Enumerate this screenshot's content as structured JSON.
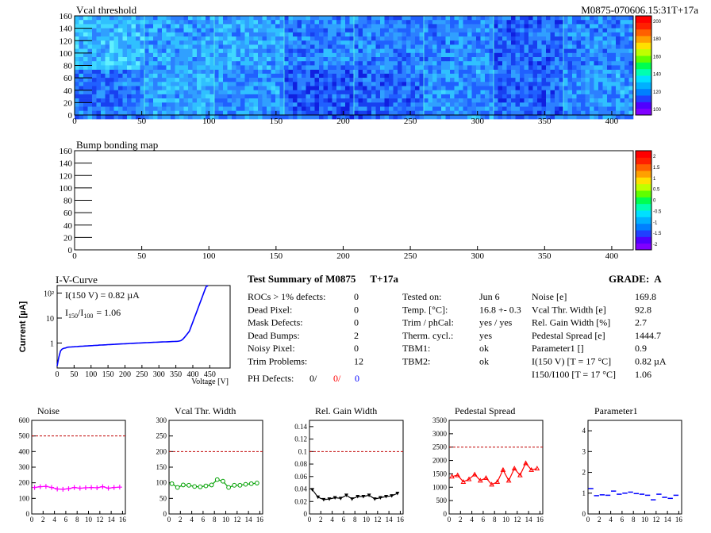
{
  "header": {
    "run_id": "M0875-070606.15:31T+17a"
  },
  "vcal_map": {
    "title": "Vcal threshold",
    "x_ticks": [
      "0",
      "50",
      "100",
      "150",
      "200",
      "250",
      "300",
      "350",
      "400"
    ],
    "y_ticks": [
      "0",
      "20",
      "40",
      "60",
      "80",
      "100",
      "120",
      "140",
      "160"
    ],
    "z_ticks": [
      "100",
      "120",
      "140",
      "160",
      "180",
      "200"
    ],
    "colors": {
      "low": "#2040ff",
      "mid": "#00b0f0",
      "high": "#ff0000"
    }
  },
  "bump_map": {
    "title": "Bump bonding map",
    "x_ticks": [
      "0",
      "50",
      "100",
      "150",
      "200",
      "250",
      "300",
      "350",
      "400"
    ],
    "y_ticks": [
      "0",
      "20",
      "40",
      "60",
      "80",
      "100",
      "120",
      "140",
      "160"
    ],
    "z_ticks": [
      "-2",
      "-1.5",
      "-1",
      "-0.5",
      "0",
      "0.5",
      "1",
      "1.5",
      "2"
    ]
  },
  "iv_curve": {
    "title": "I-V-Curve",
    "annotation_current": "I(150 V) = 0.82 µA",
    "annotation_ratio_main": "I",
    "annotation_ratio_sub1": "150",
    "annotation_ratio_mid": "/I",
    "annotation_ratio_sub2": "100",
    "annotation_ratio_value": "= 1.06",
    "ylabel": "Current [µA]",
    "xlabel": "Voltage [V]",
    "x_ticks": [
      "0",
      "50",
      "100",
      "150",
      "200",
      "250",
      "300",
      "350",
      "400",
      "450"
    ],
    "y_ticks": [
      "1",
      "10",
      "10²"
    ]
  },
  "summary": {
    "title": "Test Summary of M0875",
    "tag": "T+17a",
    "grade_label": "GRADE:",
    "grade": "A",
    "col1": [
      {
        "label": "ROCs > 1% defects:",
        "value": "0"
      },
      {
        "label": "Dead Pixel:",
        "value": "0"
      },
      {
        "label": "Mask Defects:",
        "value": "0"
      },
      {
        "label": "Dead Bumps:",
        "value": "2"
      },
      {
        "label": "Noisy Pixel:",
        "value": "0"
      },
      {
        "label": "Trim Problems:",
        "value": "12"
      }
    ],
    "ph_defects": {
      "label": "PH Defects:",
      "v1": "0/",
      "v2": "0/",
      "v3": "0"
    },
    "col2": [
      {
        "label": "Tested on:",
        "value": "Jun 6"
      },
      {
        "label": "Temp. [°C]:",
        "value": "16.8 +- 0.3"
      },
      {
        "label": "Trim / phCal:",
        "value": "yes / yes"
      },
      {
        "label": "Therm. cycl.:",
        "value": "yes"
      },
      {
        "label": "TBM1:",
        "value": "ok"
      },
      {
        "label": "TBM2:",
        "value": "ok"
      }
    ],
    "col3": [
      {
        "label": "Noise [e]",
        "value": "169.8"
      },
      {
        "label": "Vcal Thr. Width [e]",
        "value": "92.8"
      },
      {
        "label": "Rel. Gain Width [%]",
        "value": "2.7"
      },
      {
        "label": "Pedestal Spread [e]",
        "value": "1444.7"
      },
      {
        "label": "Parameter1 []",
        "value": "0.9"
      },
      {
        "label": "I(150 V) [T = 17 °C]",
        "value": "0.82 µA"
      },
      {
        "label": "I150/I100 [T = 17 °C]",
        "value": "1.06"
      }
    ]
  },
  "chart_data": [
    {
      "type": "line",
      "title": "Noise",
      "x": [
        0,
        1,
        2,
        3,
        4,
        5,
        6,
        7,
        8,
        9,
        10,
        11,
        12,
        13,
        14,
        15
      ],
      "values": [
        170,
        175,
        177,
        170,
        160,
        158,
        162,
        170,
        165,
        168,
        170,
        168,
        175,
        165,
        170,
        172
      ],
      "ylim": [
        0,
        600
      ],
      "y_ticks": [
        "0",
        "100",
        "200",
        "300",
        "400",
        "500",
        "600"
      ],
      "limit": 500,
      "color": "#ff00ff",
      "marker": "cross"
    },
    {
      "type": "line",
      "title": "Vcal Thr. Width",
      "x": [
        0,
        1,
        2,
        3,
        4,
        5,
        6,
        7,
        8,
        9,
        10,
        11,
        12,
        13,
        14,
        15
      ],
      "values": [
        97,
        85,
        93,
        92,
        88,
        87,
        90,
        93,
        110,
        105,
        85,
        92,
        92,
        95,
        97,
        99
      ],
      "ylim": [
        0,
        300
      ],
      "y_ticks": [
        "0",
        "50",
        "100",
        "150",
        "200",
        "250",
        "300"
      ],
      "limit": 200,
      "color": "#00a000",
      "marker": "circle"
    },
    {
      "type": "line",
      "title": "Rel. Gain Width",
      "x": [
        0,
        1,
        2,
        3,
        4,
        5,
        6,
        7,
        8,
        9,
        10,
        11,
        12,
        13,
        14,
        15
      ],
      "values": [
        0.039,
        0.027,
        0.023,
        0.024,
        0.026,
        0.025,
        0.03,
        0.024,
        0.028,
        0.028,
        0.03,
        0.024,
        0.026,
        0.028,
        0.029,
        0.033
      ],
      "ylim": [
        0,
        0.15
      ],
      "y_ticks": [
        "0",
        "0.02",
        "0.04",
        "0.06",
        "0.08",
        "0.1",
        "0.12",
        "0.14"
      ],
      "limit": 0.1,
      "color": "#000000",
      "marker": "triangle-down"
    },
    {
      "type": "line",
      "title": "Pedestal Spread",
      "x": [
        0,
        1,
        2,
        3,
        4,
        5,
        6,
        7,
        8,
        9,
        10,
        11,
        12,
        13,
        14,
        15
      ],
      "values": [
        1400,
        1450,
        1200,
        1300,
        1480,
        1250,
        1350,
        1100,
        1200,
        1650,
        1250,
        1700,
        1450,
        1900,
        1650,
        1700
      ],
      "ylim": [
        0,
        3500
      ],
      "y_ticks": [
        "0",
        "500",
        "1000",
        "1500",
        "2000",
        "2500",
        "3000",
        "3500"
      ],
      "limit": 2500,
      "color": "#ff0000",
      "marker": "triangle-up"
    },
    {
      "type": "line",
      "title": "Parameter1",
      "x": [
        0,
        1,
        2,
        3,
        4,
        5,
        6,
        7,
        8,
        9,
        10,
        11,
        12,
        13,
        14,
        15
      ],
      "values": [
        1.22,
        0.88,
        0.92,
        0.9,
        1.1,
        0.95,
        1.0,
        1.05,
        0.98,
        0.95,
        0.9,
        0.68,
        0.95,
        0.8,
        0.75,
        0.9
      ],
      "ylim": [
        0,
        4.5
      ],
      "y_ticks": [
        "0",
        "1",
        "2",
        "3",
        "4"
      ],
      "limit": null,
      "color": "#0000ff",
      "marker": "hbar"
    }
  ]
}
